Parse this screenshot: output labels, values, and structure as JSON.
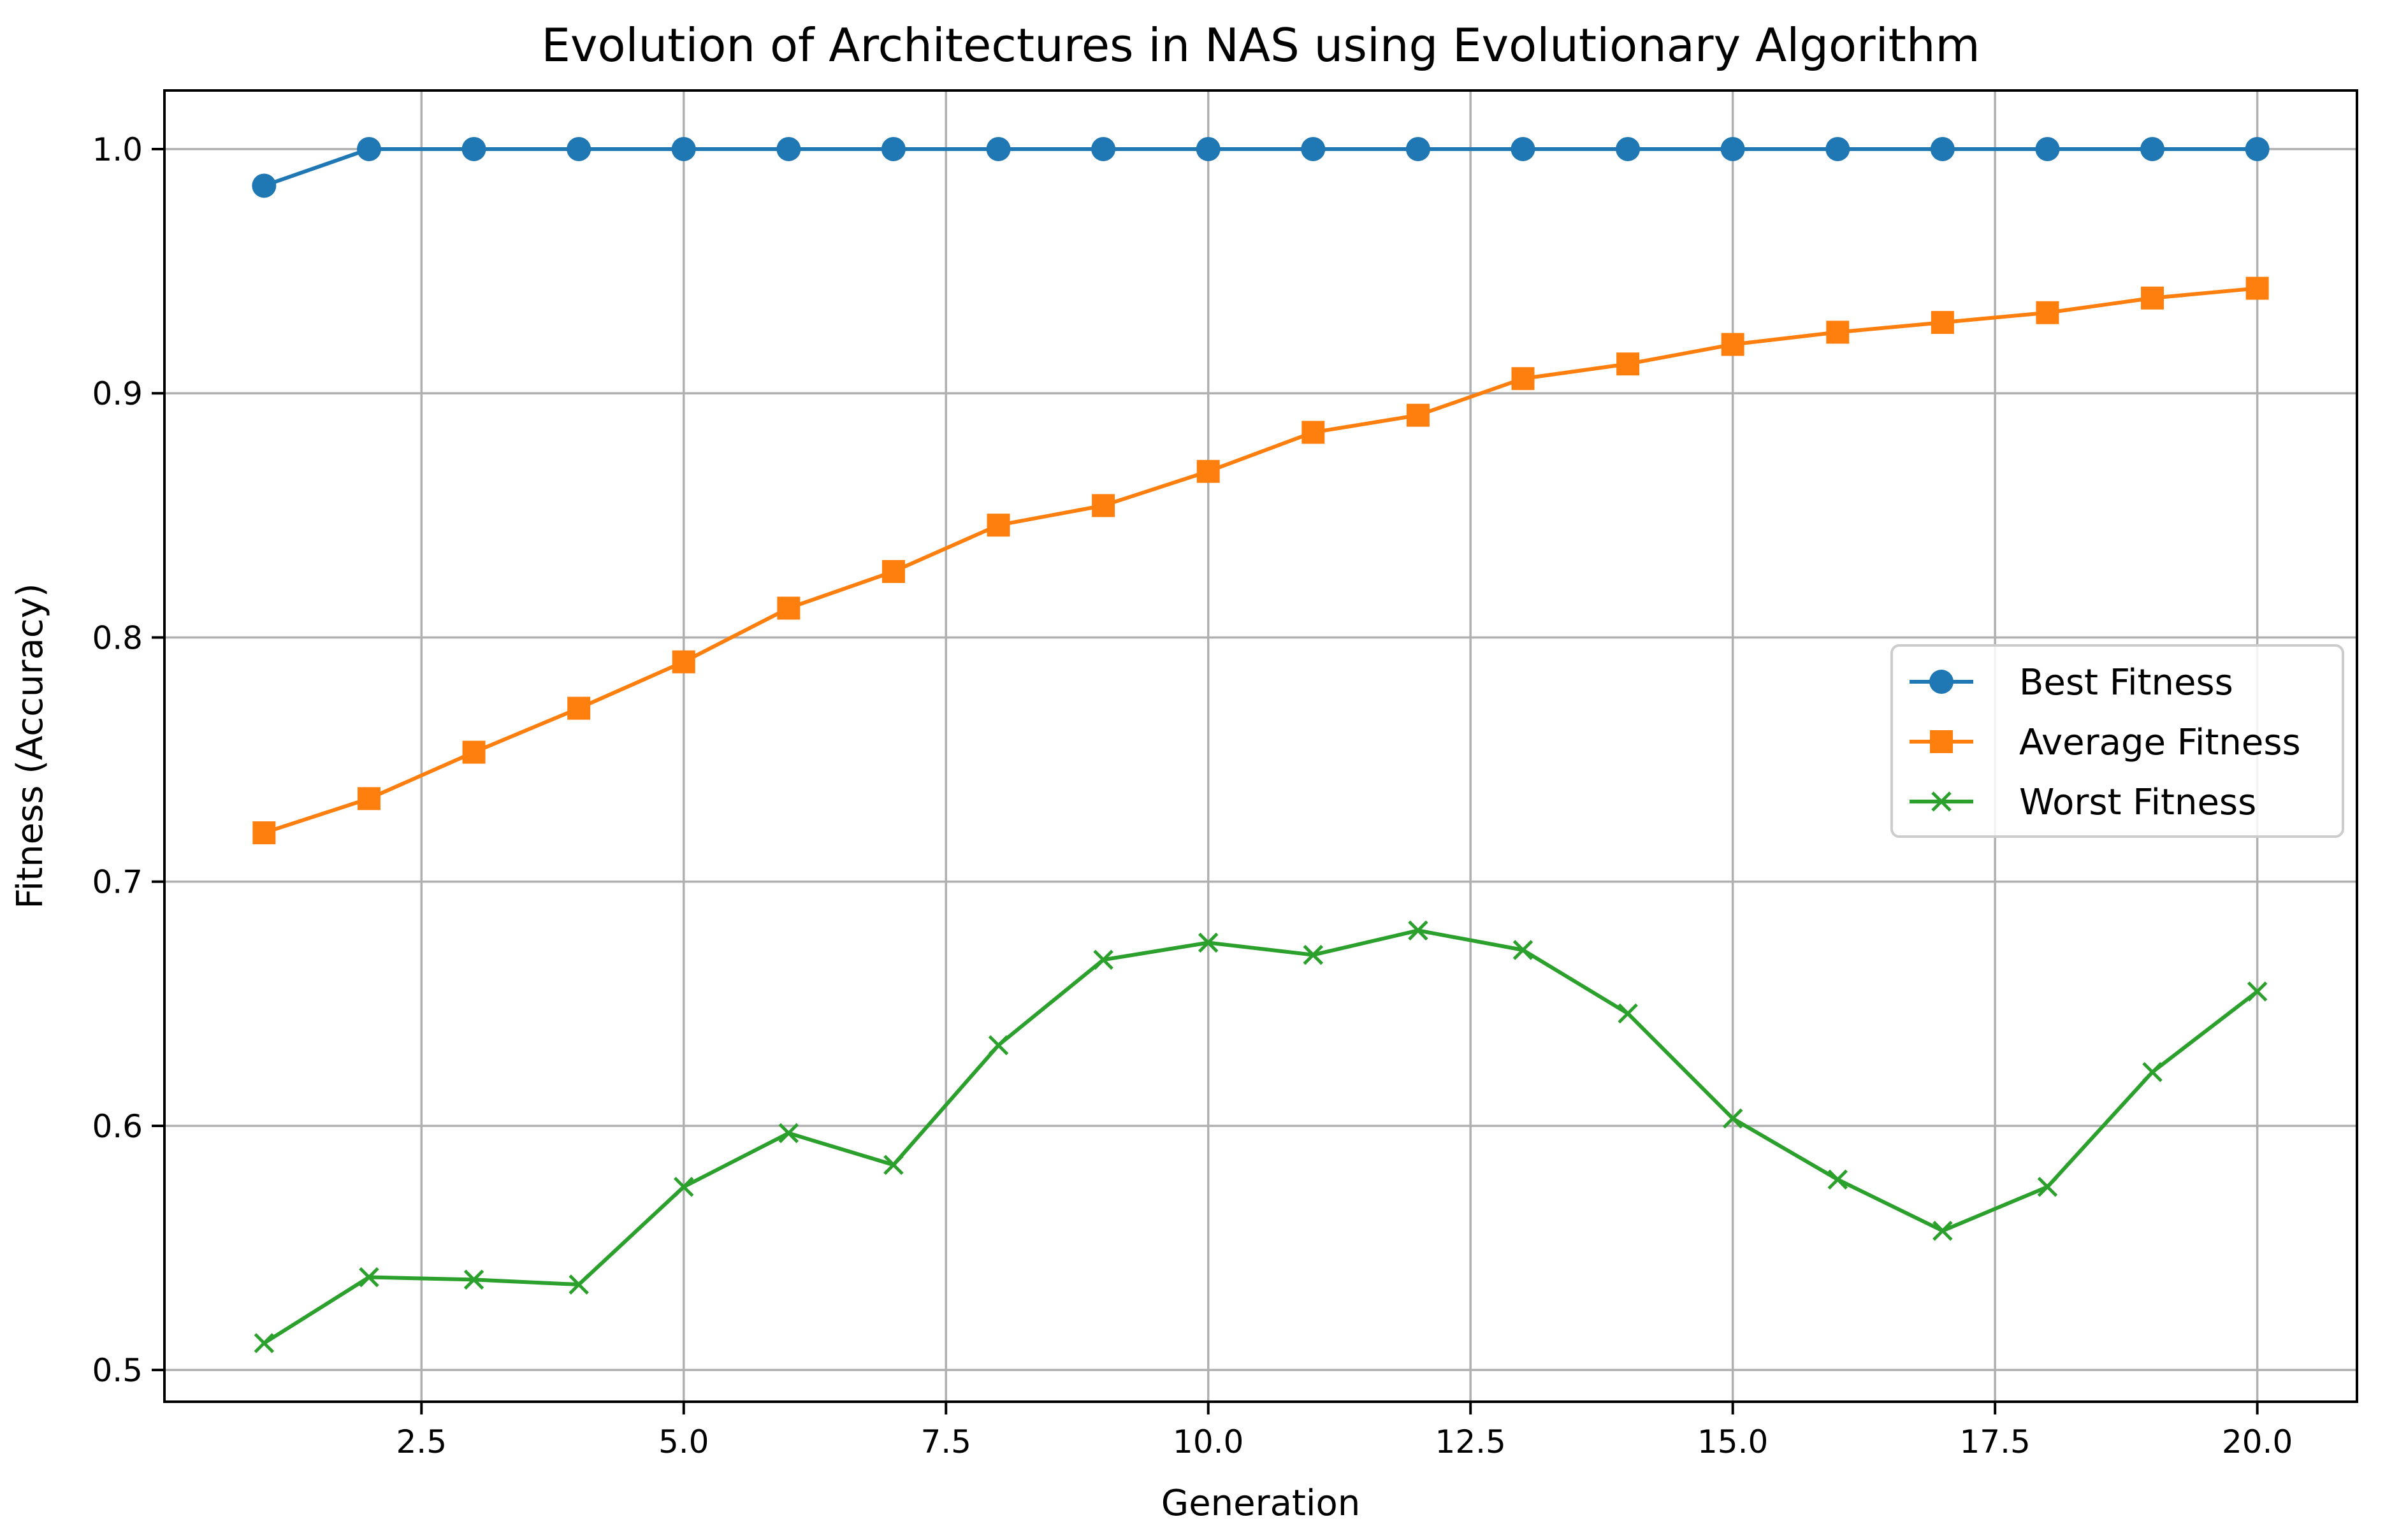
{
  "chart_data": {
    "type": "line",
    "title": "Evolution of Architectures in NAS using Evolutionary Algorithm",
    "xlabel": "Generation",
    "ylabel": "Fitness (Accuracy)",
    "xlim": [
      0.05,
      20.95
    ],
    "ylim": [
      0.487,
      1.024
    ],
    "xticks": [
      2.5,
      5.0,
      7.5,
      10.0,
      12.5,
      15.0,
      17.5,
      20.0
    ],
    "xtick_labels": [
      "2.5",
      "5.0",
      "7.5",
      "10.0",
      "12.5",
      "15.0",
      "17.5",
      "20.0"
    ],
    "yticks": [
      0.5,
      0.6,
      0.7,
      0.8,
      0.9,
      1.0
    ],
    "ytick_labels": [
      "0.5",
      "0.6",
      "0.7",
      "0.8",
      "0.9",
      "1.0"
    ],
    "grid": true,
    "legend_position": "center-right",
    "x": [
      1,
      2,
      3,
      4,
      5,
      6,
      7,
      8,
      9,
      10,
      11,
      12,
      13,
      14,
      15,
      16,
      17,
      18,
      19,
      20
    ],
    "series": [
      {
        "name": "Best Fitness",
        "color": "#1f77b4",
        "marker": "circle",
        "values": [
          0.985,
          1.0,
          1.0,
          1.0,
          1.0,
          1.0,
          1.0,
          1.0,
          1.0,
          1.0,
          1.0,
          1.0,
          1.0,
          1.0,
          1.0,
          1.0,
          1.0,
          1.0,
          1.0,
          1.0
        ]
      },
      {
        "name": "Average Fitness",
        "color": "#ff7f0e",
        "marker": "square",
        "values": [
          0.72,
          0.734,
          0.753,
          0.771,
          0.79,
          0.812,
          0.827,
          0.846,
          0.854,
          0.868,
          0.884,
          0.891,
          0.906,
          0.912,
          0.92,
          0.925,
          0.929,
          0.933,
          0.939,
          0.943
        ]
      },
      {
        "name": "Worst Fitness",
        "color": "#2ca02c",
        "marker": "x",
        "values": [
          0.511,
          0.538,
          0.537,
          0.535,
          0.575,
          0.597,
          0.584,
          0.633,
          0.668,
          0.675,
          0.67,
          0.68,
          0.672,
          0.646,
          0.603,
          0.578,
          0.557,
          0.575,
          0.622,
          0.655
        ]
      }
    ]
  }
}
